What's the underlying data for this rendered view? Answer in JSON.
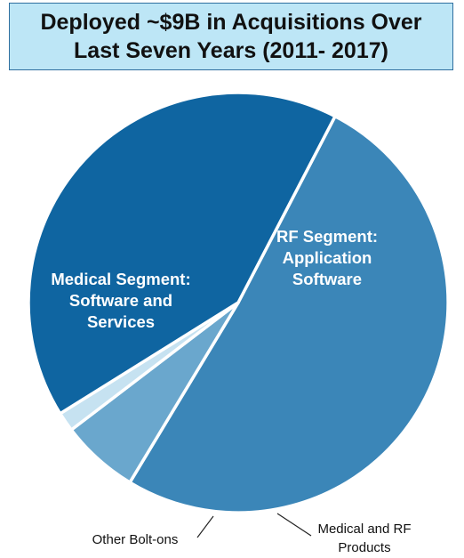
{
  "title": {
    "line1": "Deployed ~$9B in Acquisitions Over",
    "line2": "Last Seven Years (2011- 2017)"
  },
  "colors": {
    "title_background": "#bde6f6",
    "title_border": "#2f6f9f",
    "rf_application_software": "#3b86b8",
    "medical_software_services": "#0f65a1",
    "medical_rf_products": "#6aa7cd",
    "other_bolt_ons": "#c6e2f1"
  },
  "chart_data": {
    "type": "pie",
    "title": "Deployed ~$9B in Acquisitions Over Last Seven Years (2011- 2017)",
    "unit": "share of total",
    "slices": [
      {
        "key": "rf",
        "label_lines": [
          "RF Segment:",
          "Application",
          "Software"
        ],
        "value": 0.51,
        "color": "#3b86b8",
        "label_inside": true
      },
      {
        "key": "medrf",
        "label_lines": [
          "Medical and RF",
          "Products"
        ],
        "value": 0.06,
        "color": "#6aa7cd",
        "label_inside": false
      },
      {
        "key": "other",
        "label_lines": [
          "Other Bolt-ons"
        ],
        "value": 0.015,
        "color": "#c6e2f1",
        "label_inside": false
      },
      {
        "key": "medical",
        "label_lines": [
          "Medical Segment:",
          "Software and",
          "Services"
        ],
        "value": 0.415,
        "color": "#0f65a1",
        "label_inside": true
      }
    ]
  }
}
